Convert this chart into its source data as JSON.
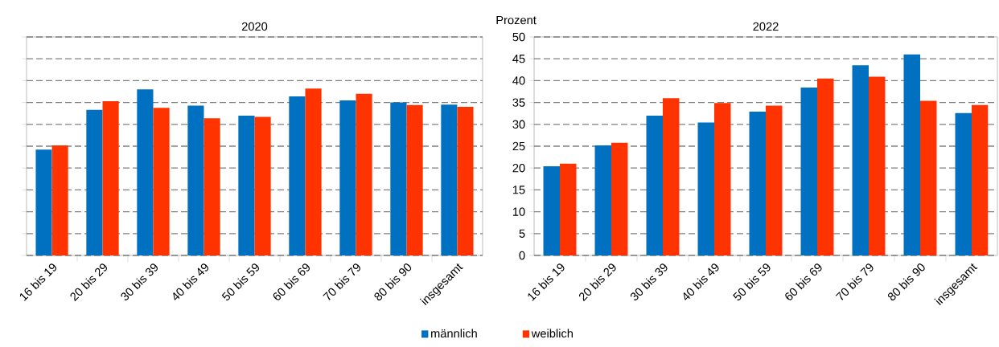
{
  "chart_data": [
    {
      "type": "bar",
      "title": "2020",
      "categories": [
        "16 bis 19",
        "20 bis 29",
        "30 bis 39",
        "40 bis 49",
        "50 bis 59",
        "60 bis 69",
        "70 bis 79",
        "80 bis 90",
        "insgesamt"
      ],
      "series": [
        {
          "name": "männlich",
          "color": "#0070c0",
          "values": [
            24.2,
            33.3,
            38.0,
            34.3,
            32.0,
            36.4,
            35.5,
            35.0,
            34.5
          ]
        },
        {
          "name": "weiblich",
          "color": "#ff3300",
          "values": [
            25.2,
            35.3,
            33.8,
            31.4,
            31.7,
            38.2,
            37.0,
            34.4,
            34.0
          ]
        }
      ],
      "ylim": [
        0,
        50
      ],
      "yticks": [
        0,
        5,
        10,
        15,
        20,
        25,
        30,
        35,
        40,
        45,
        50
      ],
      "tick_labels": "x",
      "grid": "y",
      "legend": "bottom"
    },
    {
      "type": "bar",
      "title": "2022",
      "ylabel": "Prozent",
      "categories": [
        "16 bis 19",
        "20 bis 29",
        "30 bis 39",
        "40 bis 49",
        "50 bis 59",
        "60 bis 69",
        "70 bis 79",
        "80 bis 90",
        "insgesamt"
      ],
      "series": [
        {
          "color": "#0070c0",
          "values": [
            20.4,
            25.2,
            32.0,
            30.4,
            32.9,
            38.4,
            43.5,
            46.0,
            32.6
          ]
        },
        {
          "color": "#ff3300",
          "values": [
            21.0,
            25.8,
            36.0,
            34.9,
            34.3,
            40.5,
            40.9,
            35.4,
            34.4
          ]
        }
      ],
      "ylim": [
        0,
        50
      ],
      "yticks": [
        0,
        5,
        10,
        15,
        20,
        25,
        30,
        35,
        40,
        45,
        50
      ],
      "grid": "y"
    }
  ]
}
